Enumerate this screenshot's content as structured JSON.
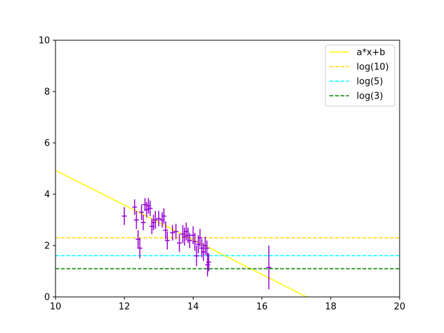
{
  "chart_data": {
    "type": "scatter",
    "title": "",
    "xlabel": "",
    "ylabel": "",
    "xlim": [
      10,
      20
    ],
    "ylim": [
      0,
      10
    ],
    "x_ticks": [
      10,
      12,
      14,
      16,
      18,
      20
    ],
    "y_ticks": [
      0,
      2,
      4,
      6,
      8,
      10
    ],
    "grid": false,
    "legend_position": "top-right",
    "points": {
      "color": "#9400d3",
      "data": [
        {
          "x": 12.0,
          "y": 3.15,
          "err": 0.35
        },
        {
          "x": 12.3,
          "y": 3.5,
          "err": 0.3
        },
        {
          "x": 12.35,
          "y": 3.0,
          "err": 0.35
        },
        {
          "x": 12.4,
          "y": 2.25,
          "err": 0.35
        },
        {
          "x": 12.45,
          "y": 1.9,
          "err": 0.4
        },
        {
          "x": 12.5,
          "y": 3.3,
          "err": 0.3
        },
        {
          "x": 12.55,
          "y": 2.9,
          "err": 0.3
        },
        {
          "x": 12.6,
          "y": 3.6,
          "err": 0.25
        },
        {
          "x": 12.65,
          "y": 3.4,
          "err": 0.3
        },
        {
          "x": 12.7,
          "y": 3.55,
          "err": 0.3
        },
        {
          "x": 12.75,
          "y": 3.45,
          "err": 0.3
        },
        {
          "x": 12.8,
          "y": 2.75,
          "err": 0.3
        },
        {
          "x": 12.85,
          "y": 2.9,
          "err": 0.3
        },
        {
          "x": 12.9,
          "y": 3.0,
          "err": 0.35
        },
        {
          "x": 13.0,
          "y": 3.05,
          "err": 0.3
        },
        {
          "x": 13.1,
          "y": 3.0,
          "err": 0.3
        },
        {
          "x": 13.15,
          "y": 3.15,
          "err": 0.3
        },
        {
          "x": 13.2,
          "y": 2.6,
          "err": 0.35
        },
        {
          "x": 13.25,
          "y": 2.2,
          "err": 0.35
        },
        {
          "x": 13.4,
          "y": 2.5,
          "err": 0.3
        },
        {
          "x": 13.5,
          "y": 2.55,
          "err": 0.3
        },
        {
          "x": 13.6,
          "y": 2.1,
          "err": 0.35
        },
        {
          "x": 13.7,
          "y": 2.45,
          "err": 0.35
        },
        {
          "x": 13.75,
          "y": 2.35,
          "err": 0.35
        },
        {
          "x": 13.8,
          "y": 2.55,
          "err": 0.35
        },
        {
          "x": 13.85,
          "y": 2.4,
          "err": 0.3
        },
        {
          "x": 13.9,
          "y": 2.2,
          "err": 0.3
        },
        {
          "x": 14.0,
          "y": 2.4,
          "err": 0.35
        },
        {
          "x": 14.05,
          "y": 2.15,
          "err": 0.35
        },
        {
          "x": 14.1,
          "y": 1.6,
          "err": 0.4
        },
        {
          "x": 14.15,
          "y": 2.05,
          "err": 0.35
        },
        {
          "x": 14.2,
          "y": 2.3,
          "err": 0.35
        },
        {
          "x": 14.25,
          "y": 1.9,
          "err": 0.35
        },
        {
          "x": 14.3,
          "y": 1.75,
          "err": 0.35
        },
        {
          "x": 14.35,
          "y": 2.0,
          "err": 0.35
        },
        {
          "x": 14.4,
          "y": 1.9,
          "err": 0.3
        },
        {
          "x": 14.42,
          "y": 1.25,
          "err": 0.45
        },
        {
          "x": 14.45,
          "y": 1.35,
          "err": 0.35
        },
        {
          "x": 16.2,
          "y": 1.15,
          "err": 0.85
        }
      ]
    },
    "series": [
      {
        "name": "a*x+b",
        "type": "line",
        "style": "solid",
        "color": "#ffff00",
        "x": [
          10,
          17.3
        ],
        "y": [
          4.93,
          0
        ]
      },
      {
        "name": "log(10)",
        "type": "hline",
        "style": "dashed",
        "color": "#ffd700",
        "y": 2.302585
      },
      {
        "name": "log(5)",
        "type": "hline",
        "style": "dashed",
        "color": "#00ffff",
        "y": 1.609438
      },
      {
        "name": "log(3)",
        "type": "hline",
        "style": "dashed",
        "color": "#008000",
        "y": 1.098612
      }
    ]
  }
}
